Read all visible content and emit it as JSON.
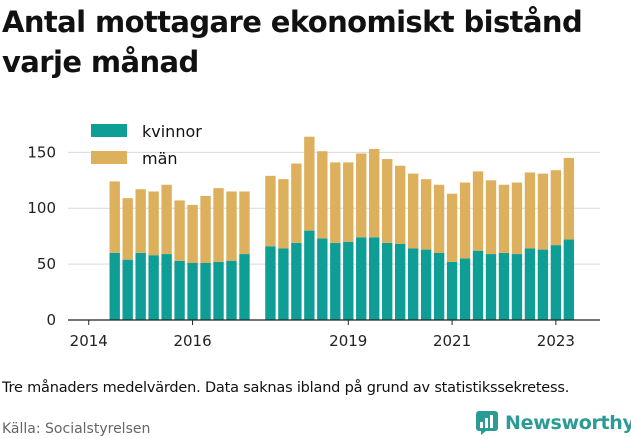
{
  "title": "Antal mottagare ekonomiskt bistånd varje månad",
  "note": "Tre månaders medelvärden. Data saknas ibland på grund av statistikssekretess.",
  "source": "Källa: Socialstyrelsen",
  "brand": {
    "name": "Newsworthy",
    "icon": "newsworthy-logo-icon",
    "color": "#2a9c95"
  },
  "chart_data": {
    "type": "bar",
    "stacked": true,
    "x_unit": "quarter",
    "xticks": [
      "2014",
      "2016",
      "2019",
      "2021",
      "2023"
    ],
    "xtick_years": [
      2014,
      2016,
      2019,
      2021,
      2023
    ],
    "xlim": [
      2013.6,
      2023.85
    ],
    "yticks": [
      "0",
      "50",
      "100",
      "150"
    ],
    "ylim": [
      0,
      170
    ],
    "grid": true,
    "legend_position": "top-left",
    "x": [
      2014.5,
      2014.75,
      2015,
      2015.25,
      2015.5,
      2015.75,
      2016,
      2016.25,
      2016.5,
      2016.75,
      2017,
      2017.25,
      2017.5,
      2017.75,
      2018,
      2018.25,
      2018.5,
      2018.75,
      2019,
      2019.25,
      2019.5,
      2019.75,
      2020,
      2020.25,
      2020.5,
      2020.75,
      2021,
      2021.25,
      2021.5,
      2021.75,
      2022,
      2022.25,
      2022.5,
      2022.75,
      2023,
      2023.25
    ],
    "series": [
      {
        "name": "kvinnor",
        "color": "#0f9e95",
        "values": [
          60,
          54,
          60,
          58,
          59,
          53,
          51,
          51,
          52,
          53,
          59,
          null,
          66,
          64,
          69,
          80,
          73,
          69,
          70,
          74,
          74,
          69,
          68,
          64,
          63,
          60,
          52,
          55,
          62,
          59,
          60,
          59,
          64,
          63,
          67,
          72
        ]
      },
      {
        "name": "män",
        "color": "#ddb05e",
        "values": [
          64,
          55,
          57,
          57,
          62,
          54,
          52,
          60,
          66,
          62,
          56,
          null,
          63,
          62,
          71,
          84,
          78,
          72,
          71,
          75,
          79,
          75,
          70,
          67,
          63,
          61,
          61,
          68,
          71,
          66,
          61,
          64,
          68,
          68,
          67,
          73
        ]
      }
    ]
  }
}
